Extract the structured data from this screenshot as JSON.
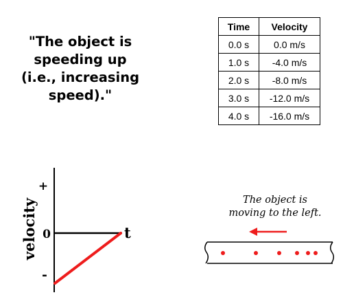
{
  "statement": {
    "lines": [
      "\"The object is",
      "speeding up",
      "(i.e., increasing",
      "speed).\""
    ]
  },
  "table": {
    "headers": [
      "Time",
      "Velocity"
    ],
    "rows": [
      [
        "0.0 s",
        "0.0 m/s"
      ],
      [
        "1.0 s",
        "-4.0 m/s"
      ],
      [
        "2.0 s",
        "-8.0 m/s"
      ],
      [
        "3.0 s",
        "-12.0 m/s"
      ],
      [
        "4.0 s",
        "-16.0 m/s"
      ]
    ]
  },
  "graph": {
    "y_axis_label": "velocity",
    "x_axis_label": "t",
    "plus_sign": "+",
    "zero_label": "0",
    "minus_sign": "-",
    "line_color": "#ee1c1c",
    "line": {
      "t_start": 0,
      "v_start": "negative",
      "v_end": 0,
      "trend": "increasing toward zero"
    }
  },
  "motion": {
    "caption": [
      "The object is",
      "moving to the left."
    ],
    "arrow_direction": "left",
    "arrow_color": "#ee1c1c",
    "dot_color": "#ee1c1c",
    "dot_count": 6
  }
}
